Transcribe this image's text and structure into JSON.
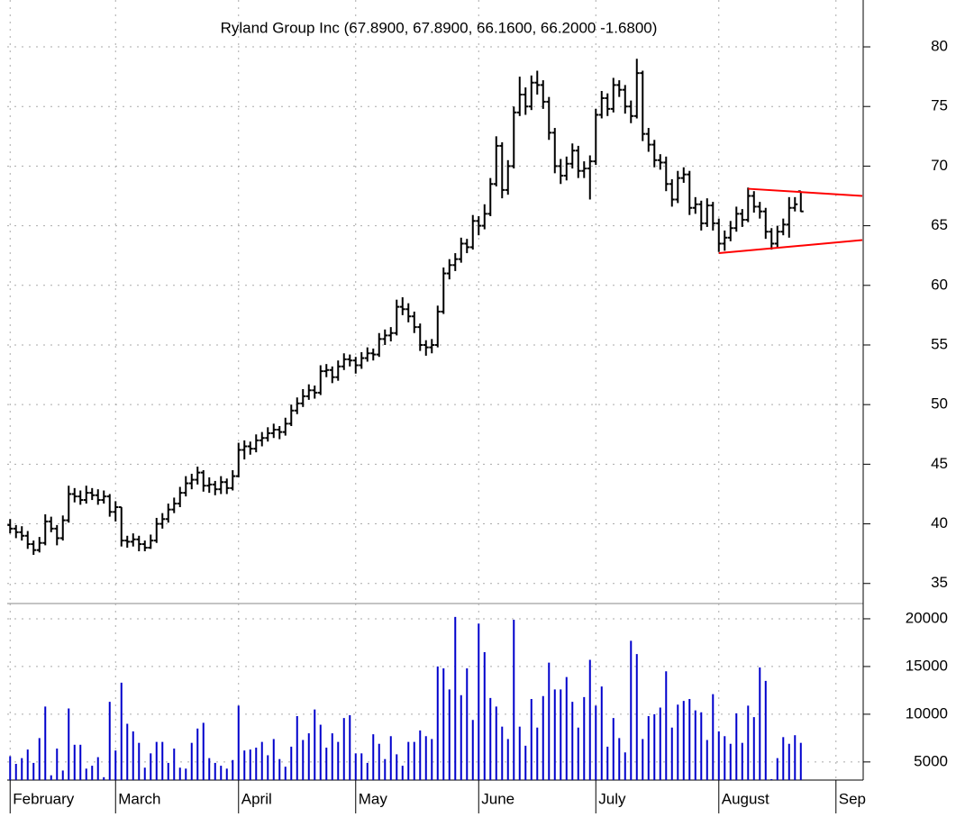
{
  "chart_data": [
    {
      "type": "ohlc",
      "subtitle": "Ryland Group Inc (67.8900, 67.8900, 66.1600, 66.2000 -1.6800)",
      "color": "#000000",
      "grid": true,
      "xlim": [
        -0.5,
        145.65
      ],
      "ylim": [
        33.47,
        83.93
      ],
      "yticks": [
        35,
        40,
        45,
        50,
        55,
        60,
        65,
        70,
        75,
        80
      ],
      "trendline_color": "#ff0000",
      "trendlines": [
        {
          "x": [
            121,
            145.5
          ],
          "y": [
            62.7,
            63.8
          ]
        },
        {
          "x": [
            126,
            145.5
          ],
          "y": [
            68.1,
            67.5
          ]
        }
      ],
      "ohlc": [
        [
          39.9,
          40.4,
          39.2,
          39.6
        ],
        [
          39.6,
          39.9,
          38.8,
          39.3
        ],
        [
          39.3,
          39.8,
          38.6,
          39.0
        ],
        [
          39.0,
          39.4,
          37.9,
          38.3
        ],
        [
          38.3,
          38.6,
          37.4,
          37.8
        ],
        [
          37.8,
          38.9,
          37.6,
          38.4
        ],
        [
          38.4,
          40.8,
          38.2,
          40.2
        ],
        [
          40.2,
          40.6,
          39.3,
          39.6
        ],
        [
          39.6,
          39.9,
          38.2,
          38.8
        ],
        [
          38.8,
          40.7,
          38.6,
          40.3
        ],
        [
          40.3,
          43.2,
          40.1,
          42.5
        ],
        [
          42.5,
          43.0,
          41.8,
          42.3
        ],
        [
          42.3,
          42.8,
          41.6,
          42.0
        ],
        [
          42.0,
          43.2,
          41.7,
          42.6
        ],
        [
          42.6,
          43.0,
          42.0,
          42.4
        ],
        [
          42.4,
          42.9,
          41.6,
          42.0
        ],
        [
          42.0,
          42.8,
          41.7,
          42.3
        ],
        [
          42.3,
          42.5,
          40.6,
          41.0
        ],
        [
          41.0,
          41.9,
          40.2,
          41.4
        ],
        [
          41.4,
          41.4,
          38.1,
          38.6
        ],
        [
          38.6,
          39.0,
          38.0,
          38.5
        ],
        [
          38.5,
          39.2,
          38.1,
          38.7
        ],
        [
          38.7,
          39.0,
          37.7,
          38.3
        ],
        [
          38.3,
          38.6,
          37.7,
          38.0
        ],
        [
          38.0,
          39.1,
          37.9,
          38.6
        ],
        [
          38.6,
          40.5,
          38.4,
          40.0
        ],
        [
          40.0,
          40.9,
          39.6,
          40.4
        ],
        [
          40.4,
          41.7,
          40.1,
          41.2
        ],
        [
          41.2,
          42.2,
          40.9,
          41.7
        ],
        [
          41.7,
          43.1,
          41.4,
          42.6
        ],
        [
          42.6,
          44.0,
          42.3,
          43.4
        ],
        [
          43.4,
          44.2,
          42.9,
          43.7
        ],
        [
          43.7,
          44.8,
          43.3,
          44.3
        ],
        [
          44.3,
          44.5,
          42.7,
          43.2
        ],
        [
          43.2,
          43.9,
          42.6,
          43.3
        ],
        [
          43.3,
          43.6,
          42.4,
          42.9
        ],
        [
          42.9,
          44.0,
          42.5,
          43.5
        ],
        [
          43.5,
          43.8,
          42.5,
          43.0
        ],
        [
          43.0,
          44.5,
          42.8,
          44.0
        ],
        [
          44.0,
          46.8,
          43.9,
          46.2
        ],
        [
          46.2,
          47.0,
          45.4,
          46.5
        ],
        [
          46.5,
          46.9,
          45.8,
          46.3
        ],
        [
          46.3,
          47.5,
          46.0,
          47.0
        ],
        [
          47.0,
          47.7,
          46.5,
          47.2
        ],
        [
          47.2,
          48.1,
          46.9,
          47.6
        ],
        [
          47.6,
          48.4,
          47.2,
          47.9
        ],
        [
          47.9,
          48.2,
          47.1,
          47.7
        ],
        [
          47.7,
          48.9,
          47.4,
          48.4
        ],
        [
          48.4,
          50.0,
          48.2,
          49.5
        ],
        [
          49.5,
          50.6,
          49.2,
          50.1
        ],
        [
          50.1,
          51.3,
          49.8,
          50.7
        ],
        [
          50.7,
          51.7,
          50.4,
          51.2
        ],
        [
          51.2,
          51.6,
          50.5,
          51.0
        ],
        [
          51.0,
          53.3,
          50.8,
          52.8
        ],
        [
          52.8,
          53.4,
          52.3,
          52.9
        ],
        [
          52.9,
          53.2,
          51.8,
          52.3
        ],
        [
          52.3,
          53.7,
          52.0,
          53.2
        ],
        [
          53.2,
          54.3,
          52.9,
          53.8
        ],
        [
          53.8,
          54.2,
          53.2,
          53.7
        ],
        [
          53.7,
          54.0,
          52.6,
          53.3
        ],
        [
          53.3,
          54.4,
          53.0,
          53.9
        ],
        [
          53.9,
          54.8,
          53.6,
          54.3
        ],
        [
          54.3,
          54.7,
          53.7,
          54.2
        ],
        [
          54.2,
          56.0,
          54.0,
          55.5
        ],
        [
          55.5,
          56.3,
          55.0,
          55.8
        ],
        [
          55.8,
          56.5,
          55.3,
          56.0
        ],
        [
          56.0,
          58.8,
          55.8,
          58.2
        ],
        [
          58.2,
          59.0,
          57.5,
          58.0
        ],
        [
          58.0,
          58.5,
          56.9,
          57.4
        ],
        [
          57.4,
          57.8,
          56.0,
          56.5
        ],
        [
          56.5,
          56.8,
          54.5,
          55.0
        ],
        [
          55.0,
          55.4,
          54.1,
          54.8
        ],
        [
          54.8,
          55.5,
          54.3,
          55.0
        ],
        [
          55.0,
          58.3,
          54.8,
          57.8
        ],
        [
          57.8,
          61.5,
          57.6,
          61.0
        ],
        [
          61.0,
          62.2,
          60.5,
          61.7
        ],
        [
          61.7,
          62.7,
          61.2,
          62.2
        ],
        [
          62.2,
          64.0,
          61.9,
          63.5
        ],
        [
          63.5,
          63.9,
          62.7,
          63.2
        ],
        [
          63.2,
          65.9,
          63.0,
          65.4
        ],
        [
          65.4,
          65.8,
          64.2,
          65.0
        ],
        [
          65.0,
          66.8,
          64.7,
          66.0
        ],
        [
          66.0,
          69.0,
          65.8,
          68.5
        ],
        [
          68.5,
          72.5,
          68.3,
          71.7
        ],
        [
          71.7,
          72.0,
          67.3,
          68.0
        ],
        [
          68.0,
          70.5,
          67.6,
          70.0
        ],
        [
          70.0,
          75.0,
          69.8,
          74.5
        ],
        [
          74.5,
          77.5,
          74.2,
          76.0
        ],
        [
          76.0,
          76.6,
          74.3,
          75.0
        ],
        [
          75.0,
          77.6,
          74.7,
          77.0
        ],
        [
          77.0,
          78.0,
          76.0,
          76.8
        ],
        [
          76.8,
          77.2,
          74.8,
          75.4
        ],
        [
          75.4,
          75.8,
          72.2,
          72.8
        ],
        [
          72.8,
          73.2,
          69.4,
          70.0
        ],
        [
          70.0,
          70.6,
          68.5,
          69.2
        ],
        [
          69.2,
          70.8,
          68.8,
          70.2
        ],
        [
          70.2,
          71.9,
          69.8,
          71.3
        ],
        [
          71.3,
          71.7,
          69.0,
          69.6
        ],
        [
          69.6,
          70.4,
          69.0,
          69.8
        ],
        [
          69.8,
          70.9,
          67.2,
          70.4
        ],
        [
          70.4,
          74.8,
          70.1,
          74.3
        ],
        [
          74.3,
          76.3,
          74.0,
          75.7
        ],
        [
          75.7,
          76.1,
          74.2,
          74.8
        ],
        [
          74.8,
          77.4,
          74.5,
          76.8
        ],
        [
          76.8,
          77.2,
          75.8,
          76.4
        ],
        [
          76.4,
          76.8,
          74.4,
          75.0
        ],
        [
          75.0,
          75.5,
          73.6,
          74.2
        ],
        [
          74.2,
          79.0,
          74.0,
          77.8
        ],
        [
          77.8,
          78.0,
          72.1,
          72.7
        ],
        [
          72.7,
          73.2,
          71.2,
          71.8
        ],
        [
          71.8,
          72.2,
          69.9,
          70.5
        ],
        [
          70.5,
          71.0,
          69.7,
          70.3
        ],
        [
          70.3,
          70.8,
          67.9,
          68.5
        ],
        [
          68.5,
          68.9,
          66.6,
          67.2
        ],
        [
          67.2,
          69.6,
          66.9,
          69.0
        ],
        [
          69.0,
          69.9,
          68.6,
          69.3
        ],
        [
          69.3,
          69.6,
          65.9,
          66.5
        ],
        [
          66.5,
          67.4,
          66.0,
          66.8
        ],
        [
          66.8,
          67.1,
          64.6,
          65.2
        ],
        [
          65.2,
          67.3,
          64.9,
          66.7
        ],
        [
          66.7,
          67.0,
          64.6,
          65.2
        ],
        [
          65.2,
          65.6,
          62.8,
          63.5
        ],
        [
          63.5,
          64.6,
          62.9,
          64.0
        ],
        [
          64.0,
          65.4,
          63.7,
          64.8
        ],
        [
          64.8,
          66.6,
          64.5,
          66.0
        ],
        [
          66.0,
          66.4,
          64.9,
          65.5
        ],
        [
          65.5,
          68.2,
          65.3,
          67.5
        ],
        [
          67.5,
          67.9,
          66.1,
          66.6
        ],
        [
          66.6,
          67.0,
          65.6,
          66.2
        ],
        [
          66.2,
          66.5,
          63.9,
          64.5
        ],
        [
          64.5,
          64.8,
          63.0,
          63.5
        ],
        [
          63.5,
          65.0,
          63.2,
          64.5
        ],
        [
          64.5,
          65.6,
          64.2,
          65.1
        ],
        [
          65.1,
          67.4,
          64.0,
          66.5
        ],
        [
          66.5,
          67.4,
          66.2,
          66.8
        ],
        [
          67.89,
          67.89,
          66.16,
          66.2
        ]
      ]
    },
    {
      "type": "bar",
      "color": "#0000cc",
      "grid": true,
      "xlim": [
        -0.5,
        145.65
      ],
      "ylim": [
        3100,
        21600
      ],
      "yticks": [
        5000,
        10000,
        15000,
        20000
      ],
      "xticks": [
        {
          "value": 0,
          "label": "February"
        },
        {
          "value": 18,
          "label": "March"
        },
        {
          "value": 39,
          "label": "April"
        },
        {
          "value": 59,
          "label": "May"
        },
        {
          "value": 80,
          "label": "June"
        },
        {
          "value": 100,
          "label": "July"
        },
        {
          "value": 121,
          "label": "August"
        },
        {
          "value": 141,
          "label": "Sep"
        }
      ],
      "values": [
        5600,
        4800,
        5400,
        6300,
        4900,
        7500,
        10800,
        3600,
        6400,
        4100,
        10600,
        6800,
        6800,
        4300,
        4600,
        5500,
        3400,
        11300,
        6200,
        13300,
        9000,
        8200,
        7000,
        4400,
        5900,
        7100,
        7100,
        4900,
        6400,
        4400,
        4300,
        7000,
        8500,
        9100,
        5400,
        4900,
        4600,
        4300,
        5200,
        10900,
        6200,
        6300,
        6500,
        7100,
        5700,
        7400,
        5300,
        4500,
        6600,
        9800,
        7300,
        8000,
        10500,
        8900,
        6500,
        8000,
        7100,
        9600,
        9900,
        5900,
        5900,
        4900,
        7900,
        6900,
        5300,
        7700,
        5800,
        4600,
        7100,
        7100,
        8300,
        7700,
        7400,
        15000,
        14800,
        12600,
        20200,
        12000,
        14800,
        9400,
        19500,
        16500,
        11700,
        10800,
        8700,
        7400,
        19900,
        8700,
        6700,
        11600,
        8600,
        11900,
        15400,
        12600,
        12600,
        13900,
        11300,
        8600,
        11800,
        15700,
        10900,
        12900,
        6600,
        9600,
        7500,
        6000,
        17700,
        16300,
        7400,
        9800,
        10000,
        10700,
        14500,
        8600,
        11000,
        11400,
        11600,
        10400,
        10200,
        7300,
        12100,
        8200,
        7700,
        6900,
        10100,
        7000,
        10900,
        9700,
        14900,
        13500,
        3200,
        5400,
        7600,
        6900,
        7800,
        7000
      ]
    }
  ]
}
